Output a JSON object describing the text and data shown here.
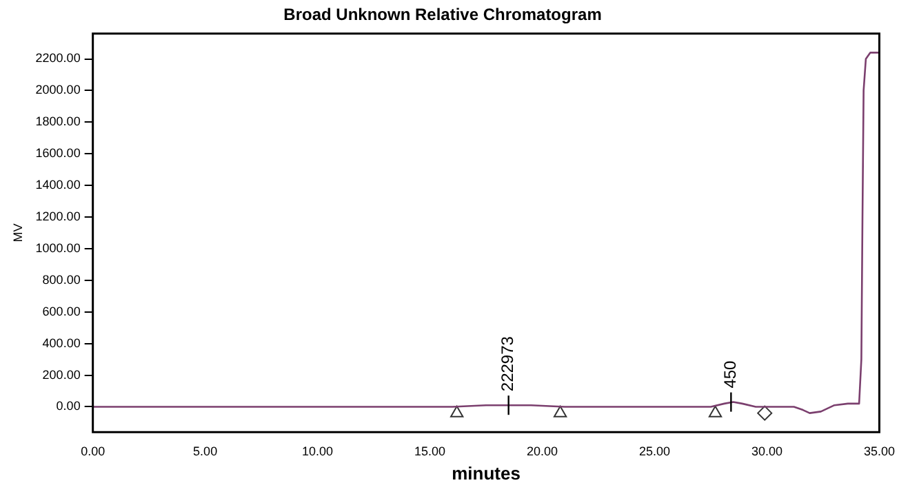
{
  "chart_data": {
    "type": "line",
    "title": "Broad Unknown Relative Chromatogram",
    "xlabel": "minutes",
    "ylabel": "MV",
    "xlim": [
      0,
      35
    ],
    "xticks": [
      {
        "value": 0,
        "label": "0.00"
      },
      {
        "value": 5,
        "label": "5.00"
      },
      {
        "value": 10,
        "label": "10.00"
      },
      {
        "value": 15,
        "label": "15.00"
      },
      {
        "value": 20,
        "label": "20.00"
      },
      {
        "value": 25,
        "label": "25.00"
      },
      {
        "value": 30,
        "label": "30.00"
      },
      {
        "value": 35,
        "label": "35.00"
      }
    ],
    "ylim": [
      -160,
      2360
    ],
    "yticks": [
      {
        "value": 0,
        "label": "0.00"
      },
      {
        "value": 200,
        "label": "200.00"
      },
      {
        "value": 400,
        "label": "400.00"
      },
      {
        "value": 600,
        "label": "600.00"
      },
      {
        "value": 800,
        "label": "800.00"
      },
      {
        "value": 1000,
        "label": "1000.00"
      },
      {
        "value": 1200,
        "label": "1200.00"
      },
      {
        "value": 1400,
        "label": "1400.00"
      },
      {
        "value": 1600,
        "label": "1600.00"
      },
      {
        "value": 1800,
        "label": "1800.00"
      },
      {
        "value": 2000,
        "label": "2000.00"
      },
      {
        "value": 2200,
        "label": "2200.00"
      }
    ],
    "grid": false,
    "legend": false,
    "marker": "none",
    "line_style": "solid",
    "series": [
      {
        "color": "#7b3f6e",
        "x": [
          0,
          10,
          16,
          17.5,
          18.5,
          19.5,
          21,
          27.5,
          28.1,
          28.5,
          28.9,
          29.5,
          31.2,
          31.6,
          31.9,
          32.4,
          33,
          33.6,
          34.1,
          34.2,
          34.25,
          34.3,
          34.4,
          34.6,
          35
        ],
        "values": [
          0,
          0,
          0,
          10,
          10,
          10,
          0,
          0,
          20,
          30,
          20,
          0,
          0,
          -20,
          -40,
          -30,
          10,
          20,
          20,
          300,
          1200,
          2000,
          2200,
          2240,
          2240
        ]
      },
      {
        "type": "scatter",
        "marker": "triangle",
        "color": "#333333",
        "x": [
          16.2,
          20.8,
          27.7
        ],
        "values": [
          -40,
          -40,
          -40
        ]
      },
      {
        "type": "scatter",
        "marker": "diamond",
        "color": "#333333",
        "x": [
          29.9
        ],
        "values": [
          -40
        ]
      }
    ],
    "annotations": [
      {
        "text": "222973",
        "x": 18.5,
        "y": 10
      },
      {
        "text": "450",
        "x": 28.4,
        "y": 30
      }
    ]
  }
}
